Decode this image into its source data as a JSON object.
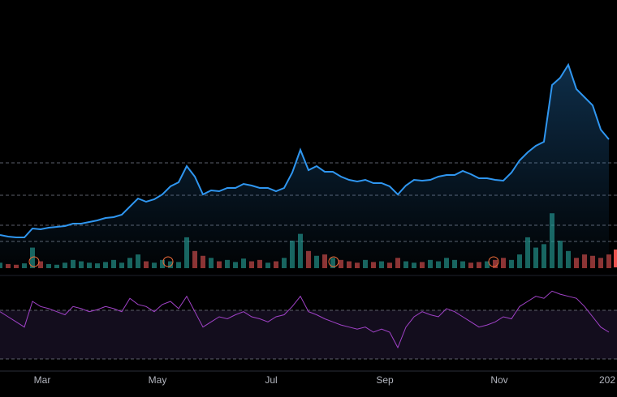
{
  "chart_data": {
    "type": "line",
    "x_tick_labels": [
      "Mar",
      "May",
      "Jul",
      "Sep",
      "Nov",
      "202"
    ],
    "ylim": [
      0,
      330
    ],
    "series": [
      {
        "color": "#2f96f0",
        "values": [
          40,
          38,
          37,
          37,
          48,
          47,
          49,
          50,
          51,
          54,
          54,
          56,
          58,
          61,
          62,
          65,
          75,
          85,
          81,
          84,
          90,
          100,
          105,
          125,
          112,
          90,
          95,
          94,
          98,
          98,
          103,
          101,
          98,
          98,
          94,
          98,
          117,
          145,
          120,
          125,
          118,
          118,
          112,
          108,
          106,
          108,
          104,
          104,
          100,
          90,
          101,
          108,
          107,
          108,
          112,
          114,
          114,
          119,
          115,
          110,
          110,
          108,
          107,
          117,
          132,
          142,
          150,
          155,
          225,
          234,
          250,
          220,
          210,
          200,
          170,
          158
        ]
      }
    ],
    "volume": {
      "up_color": "#26a69a",
      "down_color": "#ef5350",
      "ylim": [
        0,
        85
      ],
      "values": [
        8,
        6,
        5,
        7,
        30,
        10,
        6,
        5,
        8,
        12,
        10,
        8,
        7,
        9,
        12,
        8,
        15,
        20,
        10,
        8,
        12,
        10,
        9,
        45,
        25,
        18,
        15,
        10,
        12,
        9,
        14,
        10,
        12,
        8,
        10,
        15,
        40,
        50,
        25,
        18,
        20,
        15,
        12,
        10,
        8,
        12,
        9,
        10,
        8,
        15,
        10,
        8,
        9,
        12,
        10,
        15,
        12,
        10,
        8,
        9,
        10,
        12,
        15,
        12,
        20,
        45,
        30,
        35,
        80,
        40,
        25,
        15,
        20,
        18,
        15,
        20
      ]
    },
    "rsi": {
      "color": "#a142c8",
      "ylim": [
        5,
        80
      ],
      "values": [
        55,
        50,
        45,
        40,
        65,
        60,
        58,
        55,
        52,
        60,
        58,
        55,
        57,
        60,
        58,
        55,
        68,
        62,
        60,
        55,
        62,
        65,
        58,
        70,
        55,
        40,
        45,
        50,
        48,
        52,
        55,
        50,
        48,
        45,
        50,
        52,
        60,
        70,
        55,
        52,
        48,
        45,
        42,
        40,
        38,
        40,
        35,
        38,
        35,
        20,
        40,
        50,
        55,
        52,
        50,
        58,
        55,
        50,
        45,
        40,
        42,
        45,
        50,
        48,
        60,
        65,
        70,
        68,
        75,
        72,
        70,
        68,
        60,
        50,
        40,
        35
      ]
    }
  }
}
